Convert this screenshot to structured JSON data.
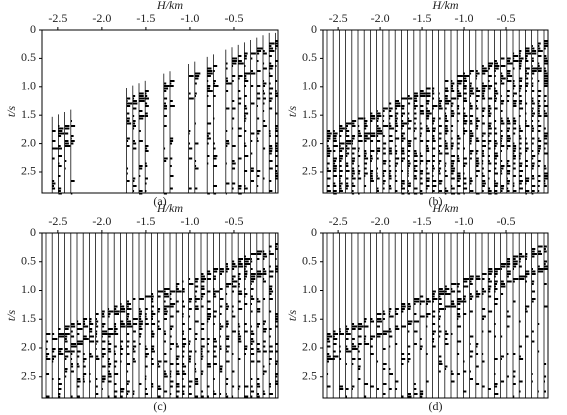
{
  "chart_data": [
    {
      "type": "seismic",
      "caption": "(a)",
      "xlabel": "H/km",
      "ylabel": "t/s",
      "xlim": [
        -2.68,
        0
      ],
      "ylim": [
        0,
        2.87
      ],
      "xticks": [
        -2.5,
        {
          "value": -2,
          "label": "-2.0"
        },
        -1.5,
        {
          "value": -1,
          "label": "-1.0"
        },
        -0.5
      ],
      "yticks": [
        0,
        0.5,
        {
          "value": 1,
          "label": "1.0"
        },
        1.5,
        {
          "value": 2,
          "label": "2.0"
        },
        2.5
      ]
    },
    {
      "type": "seismic",
      "caption": "(b)",
      "xlabel": "H/km",
      "ylabel": "t/s",
      "xlim": [
        -2.68,
        0
      ],
      "ylim": [
        0,
        2.87
      ],
      "xticks": [
        -2.5,
        {
          "value": -2,
          "label": "-2.0"
        },
        -1.5,
        {
          "value": -1,
          "label": "-1.0"
        },
        -0.5
      ],
      "yticks": [
        0,
        0.5,
        {
          "value": 1,
          "label": "1.0"
        },
        1.5,
        {
          "value": 2,
          "label": "2.0"
        },
        2.5
      ]
    },
    {
      "type": "seismic",
      "caption": "(c)",
      "xlabel": "H/km",
      "ylabel": "t/s",
      "xlim": [
        -2.68,
        0
      ],
      "ylim": [
        0,
        2.87
      ],
      "xticks": [
        -2.5,
        {
          "value": -2,
          "label": "-2.0"
        },
        -1.5,
        {
          "value": -1,
          "label": "-1.0"
        },
        -0.5
      ],
      "yticks": [
        0,
        0.5,
        {
          "value": 1,
          "label": "1.0"
        },
        1.5,
        {
          "value": 2,
          "label": "2.0"
        },
        2.5
      ]
    },
    {
      "type": "seismic",
      "caption": "(d)",
      "xlabel": "H/km",
      "ylabel": "t/s",
      "xlim": [
        -2.68,
        0
      ],
      "ylim": [
        0,
        2.87
      ],
      "xticks": [
        -2.5,
        {
          "value": -2,
          "label": "-2.0"
        },
        -1.5,
        {
          "value": -1,
          "label": "-1.0"
        },
        -0.5
      ],
      "yticks": [
        0,
        0.5,
        {
          "value": 1,
          "label": "1.0"
        },
        1.5,
        {
          "value": 2,
          "label": "2.0"
        },
        2.5
      ]
    }
  ]
}
